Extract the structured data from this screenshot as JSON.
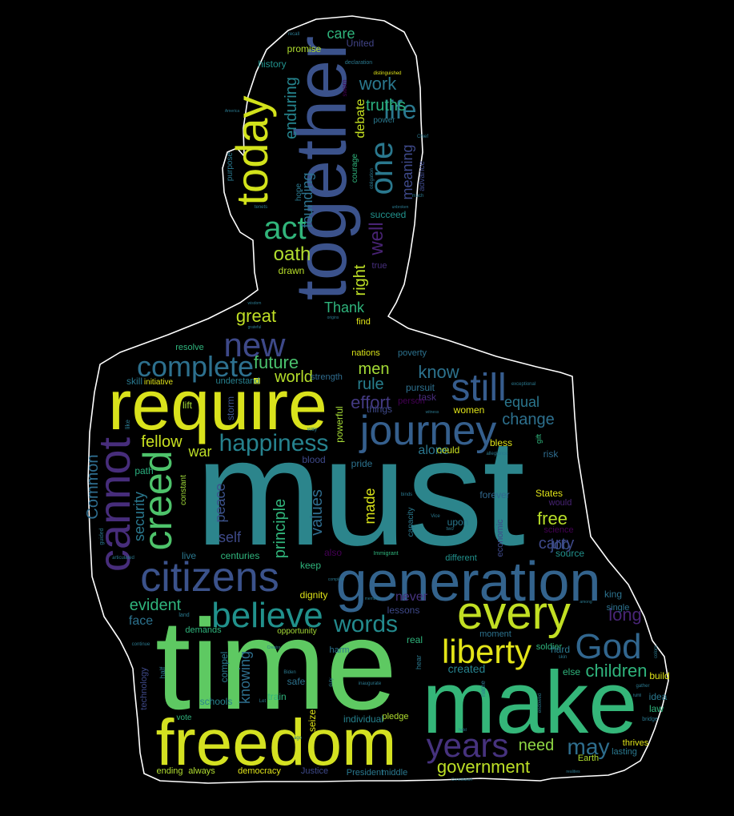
{
  "colors": {
    "background": "#000000",
    "outline": "#ffffff",
    "palette": [
      "#440154",
      "#3b528b",
      "#2c728e",
      "#21918c",
      "#28ae80",
      "#5ec962",
      "#addc30",
      "#e6e419"
    ]
  },
  "words": [
    {
      "text": "must",
      "color": "#2c858c"
    },
    {
      "text": "time",
      "color": "#5ec962"
    },
    {
      "text": "make",
      "color": "#34b679"
    },
    {
      "text": "freedom",
      "color": "#d4e121"
    },
    {
      "text": "together",
      "color": "#3b528b"
    },
    {
      "text": "require",
      "color": "#d9e21c"
    },
    {
      "text": "generation",
      "color": "#33638d"
    },
    {
      "text": "citizens",
      "color": "#3b528b"
    },
    {
      "text": "journey",
      "color": "#355f8d"
    },
    {
      "text": "every",
      "color": "#c2df23"
    },
    {
      "text": "today",
      "color": "#d2e21b"
    },
    {
      "text": "cannot",
      "color": "#472d7b"
    },
    {
      "text": "creed",
      "color": "#4ec36b"
    },
    {
      "text": "still",
      "color": "#365c8d"
    },
    {
      "text": "God",
      "color": "#31668e"
    },
    {
      "text": "believe",
      "color": "#21918c"
    },
    {
      "text": "liberty",
      "color": "#e3e418"
    },
    {
      "text": "years",
      "color": "#46327e"
    },
    {
      "text": "complete",
      "color": "#2d708e"
    },
    {
      "text": "new",
      "color": "#3e4989"
    },
    {
      "text": "happiness",
      "color": "#26828e"
    },
    {
      "text": "act",
      "color": "#31b57b"
    },
    {
      "text": "one",
      "color": "#2a788e"
    },
    {
      "text": "life",
      "color": "#2a788e"
    },
    {
      "text": "words",
      "color": "#238a8d"
    },
    {
      "text": "may",
      "color": "#2e6e8e"
    },
    {
      "text": "children",
      "color": "#2fb47c"
    },
    {
      "text": "government",
      "color": "#bddf26"
    },
    {
      "text": "long",
      "color": "#482576"
    },
    {
      "text": "know",
      "color": "#2c728e"
    },
    {
      "text": "future",
      "color": "#4ac16d"
    },
    {
      "text": "world",
      "color": "#b5de2b"
    },
    {
      "text": "men",
      "color": "#a5db36"
    },
    {
      "text": "rule",
      "color": "#277f8e"
    },
    {
      "text": "effort",
      "color": "#443a83"
    },
    {
      "text": "free",
      "color": "#b8de29"
    },
    {
      "text": "fellow",
      "color": "#c8e020"
    },
    {
      "text": "Common",
      "color": "#2e6d8e"
    },
    {
      "text": "security",
      "color": "#2a788e"
    },
    {
      "text": "principle",
      "color": "#31b57b"
    },
    {
      "text": "values",
      "color": "#2f6c8e"
    },
    {
      "text": "made",
      "color": "#d8e219"
    },
    {
      "text": "peace",
      "color": "#3b528b"
    },
    {
      "text": "self",
      "color": "#3e4a89"
    },
    {
      "text": "knowing",
      "color": "#2e6f8e"
    },
    {
      "text": "evident",
      "color": "#2fb47c"
    },
    {
      "text": "face",
      "color": "#2c728e"
    },
    {
      "text": "need",
      "color": "#8fd744"
    },
    {
      "text": "change",
      "color": "#2d708e"
    },
    {
      "text": "equal",
      "color": "#2a768e"
    },
    {
      "text": "job",
      "color": "#3b528b"
    },
    {
      "text": "carry",
      "color": "#3e4989"
    },
    {
      "text": "war",
      "color": "#bddf26"
    },
    {
      "text": "great",
      "color": "#c0df25"
    },
    {
      "text": "oath",
      "color": "#b0dd2f"
    },
    {
      "text": "Thank",
      "color": "#2fb47c"
    },
    {
      "text": "right",
      "color": "#bddf26"
    },
    {
      "text": "well",
      "color": "#482374"
    },
    {
      "text": "work",
      "color": "#2a788e"
    },
    {
      "text": "truths",
      "color": "#2ab07f"
    },
    {
      "text": "meaning",
      "color": "#3e4989"
    },
    {
      "text": "founding",
      "color": "#2c728e"
    },
    {
      "text": "enduring",
      "color": "#25848e"
    },
    {
      "text": "debate",
      "color": "#c5e021"
    },
    {
      "text": "care",
      "color": "#2fb47c"
    },
    {
      "text": "United",
      "color": "#414487"
    },
    {
      "text": "promise",
      "color": "#b0dd2f"
    },
    {
      "text": "history",
      "color": "#21918c"
    },
    {
      "text": "succeed",
      "color": "#21918c"
    },
    {
      "text": "drawn",
      "color": "#b8de29"
    },
    {
      "text": "true",
      "color": "#472f7d"
    },
    {
      "text": "find",
      "color": "#dfe318"
    },
    {
      "text": "nations",
      "color": "#d8e219"
    },
    {
      "text": "poverty",
      "color": "#2c728e"
    },
    {
      "text": "understand",
      "color": "#27808e"
    },
    {
      "text": "strength",
      "color": "#2f6c8e"
    },
    {
      "text": "resolve",
      "color": "#2fb47c"
    },
    {
      "text": "skill",
      "color": "#2a788e"
    },
    {
      "text": "initiative",
      "color": "#dfe318"
    },
    {
      "text": "storm",
      "color": "#3b528b"
    },
    {
      "text": "lift",
      "color": "#a5db36"
    },
    {
      "text": "pursuit",
      "color": "#2d708e"
    },
    {
      "text": "things",
      "color": "#3e4989"
    },
    {
      "text": "task",
      "color": "#472d7b"
    },
    {
      "text": "women",
      "color": "#dfe318"
    },
    {
      "text": "alone",
      "color": "#2a768e"
    },
    {
      "text": "could",
      "color": "#c8e020"
    },
    {
      "text": "powerful",
      "color": "#a5db36"
    },
    {
      "text": "path",
      "color": "#2ab07f"
    },
    {
      "text": "constant",
      "color": "#a0da39"
    },
    {
      "text": "blood",
      "color": "#3e4989"
    },
    {
      "text": "pride",
      "color": "#2c728e"
    },
    {
      "text": "risk",
      "color": "#2f6c8e"
    },
    {
      "text": "bless",
      "color": "#dfe318"
    },
    {
      "text": "States",
      "color": "#dfe318"
    },
    {
      "text": "forever",
      "color": "#31688e"
    },
    {
      "text": "would",
      "color": "#482475"
    },
    {
      "text": "upon",
      "color": "#2a788e"
    },
    {
      "text": "economic",
      "color": "#3e4989"
    },
    {
      "text": "science",
      "color": "#440154"
    },
    {
      "text": "source",
      "color": "#21918c"
    },
    {
      "text": "different",
      "color": "#21918c"
    },
    {
      "text": "keep",
      "color": "#2fb47c"
    },
    {
      "text": "also",
      "color": "#440154"
    },
    {
      "text": "centuries",
      "color": "#2fb47c"
    },
    {
      "text": "live",
      "color": "#2a788e"
    },
    {
      "text": "dignity",
      "color": "#dfe318"
    },
    {
      "text": "never",
      "color": "#46327e"
    },
    {
      "text": "lessons",
      "color": "#3e4989"
    },
    {
      "text": "moment",
      "color": "#2c728e"
    },
    {
      "text": "soldier",
      "color": "#2fb47c"
    },
    {
      "text": "king",
      "color": "#2c728e"
    },
    {
      "text": "demands",
      "color": "#2fb47c"
    },
    {
      "text": "opportunity",
      "color": "#a5db36"
    },
    {
      "text": "harm",
      "color": "#2c728e"
    },
    {
      "text": "real",
      "color": "#2fb47c"
    },
    {
      "text": "hard",
      "color": "#2a788e"
    },
    {
      "text": "else",
      "color": "#2fb47c"
    },
    {
      "text": "build",
      "color": "#dfe318"
    },
    {
      "text": "idea",
      "color": "#2a788e"
    },
    {
      "text": "law",
      "color": "#2fb47c"
    },
    {
      "text": "created",
      "color": "#26828e"
    },
    {
      "text": "safe",
      "color": "#2c728e"
    },
    {
      "text": "compel",
      "color": "#2a788e"
    },
    {
      "text": "schools",
      "color": "#26828e"
    },
    {
      "text": "train",
      "color": "#2fb47c"
    },
    {
      "text": "seize",
      "color": "#dfe318"
    },
    {
      "text": "pledge",
      "color": "#b0dd2f"
    },
    {
      "text": "individual",
      "color": "#26828e"
    },
    {
      "text": "technology",
      "color": "#3e4989"
    },
    {
      "text": "vote",
      "color": "#2fb47c"
    },
    {
      "text": "ending",
      "color": "#b0dd2f"
    },
    {
      "text": "always",
      "color": "#b0dd2f"
    },
    {
      "text": "democracy",
      "color": "#dfe318"
    },
    {
      "text": "Justice",
      "color": "#3e4989"
    },
    {
      "text": "President",
      "color": "#2a788e"
    },
    {
      "text": "middle",
      "color": "#2a788e"
    },
    {
      "text": "Earth",
      "color": "#b0dd2f"
    },
    {
      "text": "thrives",
      "color": "#dfe318"
    },
    {
      "text": "lasting",
      "color": "#2a788e"
    },
    {
      "text": "single",
      "color": "#2c728e"
    },
    {
      "text": "purpose",
      "color": "#2a788e"
    },
    {
      "text": "hope",
      "color": "#2a788e"
    },
    {
      "text": "courage",
      "color": "#2fb47c"
    },
    {
      "text": "advance",
      "color": "#3e4989"
    },
    {
      "text": "power",
      "color": "#2a788e"
    },
    {
      "text": "sworn",
      "color": "#440154"
    },
    {
      "text": "declaration",
      "color": "#2a788e"
    },
    {
      "text": "distinguished",
      "color": "#dfe318"
    },
    {
      "text": "recall",
      "color": "#2a788e"
    },
    {
      "text": "obligation",
      "color": "#2a788e"
    },
    {
      "text": "Chief",
      "color": "#2a788e"
    },
    {
      "text": "much",
      "color": "#2a788e"
    },
    {
      "text": "tenets",
      "color": "#2a788e"
    },
    {
      "text": "gift",
      "color": "#2fb47c"
    },
    {
      "text": "like",
      "color": "#2a788e"
    },
    {
      "text": "way",
      "color": "#2a788e"
    },
    {
      "text": "person",
      "color": "#440154"
    },
    {
      "text": "witness",
      "color": "#2a788e"
    },
    {
      "text": "exceptional",
      "color": "#2a788e"
    },
    {
      "text": "allegiance",
      "color": "#2a788e"
    },
    {
      "text": "binds",
      "color": "#2a788e"
    },
    {
      "text": "Immigrant",
      "color": "#2fb47c"
    },
    {
      "text": "Vice",
      "color": "#2a788e"
    },
    {
      "text": "two",
      "color": "#2a788e"
    },
    {
      "text": "capacity",
      "color": "#2a788e"
    },
    {
      "text": "guided",
      "color": "#2a788e"
    },
    {
      "text": "articulated",
      "color": "#2a788e"
    },
    {
      "text": "half",
      "color": "#2a788e"
    },
    {
      "text": "land",
      "color": "#2a788e"
    },
    {
      "text": "continue",
      "color": "#2a788e"
    },
    {
      "text": "Creator",
      "color": "#2a788e"
    },
    {
      "text": "Biden",
      "color": "#2a788e"
    },
    {
      "text": "Let",
      "color": "#2a788e"
    },
    {
      "text": "duty",
      "color": "#2a788e"
    },
    {
      "text": "inaugurate",
      "color": "#2a788e"
    },
    {
      "text": "hear",
      "color": "#2a788e"
    },
    {
      "text": "name",
      "color": "#2a788e"
    },
    {
      "text": "endowed",
      "color": "#2a788e"
    },
    {
      "text": "colors",
      "color": "#2a788e"
    },
    {
      "text": "bridge",
      "color": "#2a788e"
    },
    {
      "text": "realities",
      "color": "#2a788e"
    },
    {
      "text": "Constitution",
      "color": "#2a788e"
    },
    {
      "text": "hold",
      "color": "#2a788e"
    },
    {
      "text": "among",
      "color": "#2a788e"
    },
    {
      "text": "skin",
      "color": "#2a788e"
    },
    {
      "text": "gather",
      "color": "#2a788e"
    },
    {
      "text": "fulfill",
      "color": "#2a788e"
    },
    {
      "text": "ago",
      "color": "#2a788e"
    },
    {
      "text": "members",
      "color": "#2a788e"
    },
    {
      "text": "complete",
      "color": "#2a788e"
    },
    {
      "text": "grateful",
      "color": "#2a788e"
    },
    {
      "text": "wisdom",
      "color": "#2a788e"
    },
    {
      "text": "origins",
      "color": "#2a788e"
    },
    {
      "text": "unbroken",
      "color": "#2a788e"
    },
    {
      "text": "America",
      "color": "#2a788e"
    }
  ]
}
